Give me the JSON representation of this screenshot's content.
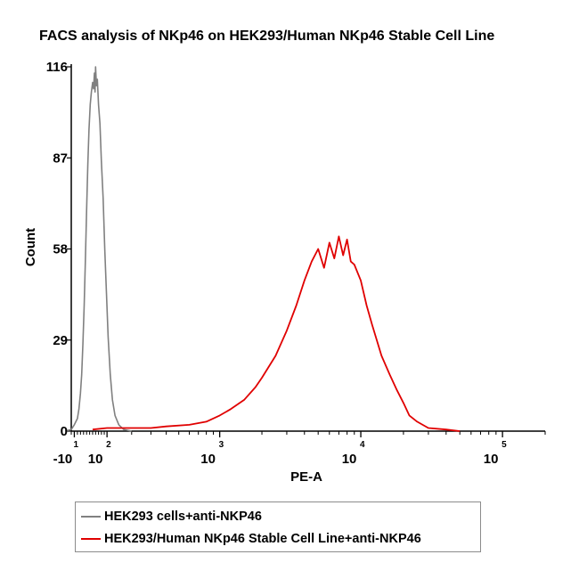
{
  "chart_data": {
    "type": "line",
    "title": "FACS analysis of NKp46 on HEK293/Human NKp46 Stable Cell Line",
    "xlabel": "PE-A",
    "ylabel": "Count",
    "x_scale": "biexponential",
    "y_ticks": [
      "0",
      "29",
      "58",
      "87",
      "116"
    ],
    "ylim": [
      0,
      116
    ],
    "x_ticks": [
      {
        "base": "-10",
        "exp": "1",
        "value": -10
      },
      {
        "base": "10",
        "exp": "2",
        "value": 100
      },
      {
        "base": "10",
        "exp": "3",
        "value": 1000
      },
      {
        "base": "10",
        "exp": "4",
        "value": 10000
      },
      {
        "base": "10",
        "exp": "5",
        "value": 100000
      }
    ],
    "series": [
      {
        "name": "HEK293 cells+anti-NKP46",
        "color": "#808080",
        "points": [
          [
            -40,
            0
          ],
          [
            -20,
            0.5
          ],
          [
            -10,
            2
          ],
          [
            0,
            4
          ],
          [
            5,
            7
          ],
          [
            10,
            12
          ],
          [
            14,
            18
          ],
          [
            18,
            28
          ],
          [
            22,
            40
          ],
          [
            26,
            55
          ],
          [
            30,
            70
          ],
          [
            34,
            85
          ],
          [
            38,
            96
          ],
          [
            42,
            104
          ],
          [
            46,
            108
          ],
          [
            50,
            111
          ],
          [
            53,
            109
          ],
          [
            56,
            114
          ],
          [
            58,
            108
          ],
          [
            60,
            116
          ],
          [
            63,
            110
          ],
          [
            66,
            112
          ],
          [
            70,
            104
          ],
          [
            75,
            98
          ],
          [
            80,
            86
          ],
          [
            86,
            74
          ],
          [
            92,
            58
          ],
          [
            98,
            44
          ],
          [
            104,
            30
          ],
          [
            112,
            18
          ],
          [
            120,
            10
          ],
          [
            130,
            5
          ],
          [
            145,
            2
          ],
          [
            165,
            0.5
          ],
          [
            200,
            0
          ]
        ]
      },
      {
        "name": "HEK293/Human NKp46 Stable Cell Line+anti-NKP46",
        "color": "#e00000",
        "points": [
          [
            50,
            0.5
          ],
          [
            100,
            1
          ],
          [
            150,
            1
          ],
          [
            200,
            1
          ],
          [
            300,
            1
          ],
          [
            400,
            1.5
          ],
          [
            600,
            2
          ],
          [
            800,
            3
          ],
          [
            1000,
            5
          ],
          [
            1200,
            7
          ],
          [
            1500,
            10
          ],
          [
            1800,
            14
          ],
          [
            2000,
            17
          ],
          [
            2500,
            24
          ],
          [
            3000,
            32
          ],
          [
            3500,
            40
          ],
          [
            4000,
            48
          ],
          [
            4500,
            54
          ],
          [
            5000,
            58
          ],
          [
            5500,
            52
          ],
          [
            6000,
            60
          ],
          [
            6500,
            55
          ],
          [
            7000,
            62
          ],
          [
            7500,
            56
          ],
          [
            8000,
            61
          ],
          [
            8500,
            54
          ],
          [
            9000,
            53
          ],
          [
            10000,
            48
          ],
          [
            11000,
            40
          ],
          [
            12000,
            34
          ],
          [
            14000,
            24
          ],
          [
            16000,
            18
          ],
          [
            18000,
            13
          ],
          [
            20000,
            9
          ],
          [
            22000,
            5
          ],
          [
            25000,
            3
          ],
          [
            30000,
            1
          ],
          [
            40000,
            0.5
          ],
          [
            50000,
            0
          ]
        ]
      }
    ]
  }
}
